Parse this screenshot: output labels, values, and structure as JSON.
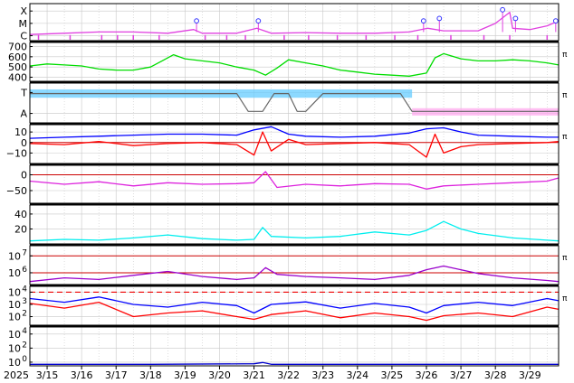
{
  "chart_data": {
    "type": "line",
    "x_start": "2025-03-14T12:00",
    "x_end": "2025-03-29T20:00",
    "date_ticks": [
      {
        "date": "2025-03-15",
        "label": "3/15"
      },
      {
        "date": "2025-03-16",
        "label": "3/16"
      },
      {
        "date": "2025-03-17",
        "label": "3/17"
      },
      {
        "date": "2025-03-18",
        "label": "3/18"
      },
      {
        "date": "2025-03-19",
        "label": "3/19"
      },
      {
        "date": "2025-03-20",
        "label": "3/20"
      },
      {
        "date": "2025-03-21",
        "label": "3/21"
      },
      {
        "date": "2025-03-22",
        "label": "3/22"
      },
      {
        "date": "2025-03-23",
        "label": "3/23"
      },
      {
        "date": "2025-03-24",
        "label": "3/24"
      },
      {
        "date": "2025-03-25",
        "label": "3/25"
      },
      {
        "date": "2025-03-26",
        "label": "3/26"
      },
      {
        "date": "2025-03-27",
        "label": "3/27"
      },
      {
        "date": "2025-03-28",
        "label": "3/28"
      },
      {
        "date": "2025-03-29",
        "label": "3/29"
      }
    ],
    "year_label": "2025",
    "unit_mark": "π",
    "panels": [
      {
        "id": "flare",
        "scale": "category",
        "ticks": [
          {
            "v": 2,
            "label": "X"
          },
          {
            "v": 1,
            "label": "M"
          },
          {
            "v": 0,
            "label": "C"
          }
        ],
        "ylim": [
          -0.4,
          2.6
        ],
        "series": [
          {
            "color": "#e040e0",
            "x": [
              "2025-03-14T12:00",
              "2025-03-15T12:00",
              "2025-03-16T12:00",
              "2025-03-17T12:00",
              "2025-03-18T12:00",
              "2025-03-19T06:00",
              "2025-03-19T12:00",
              "2025-03-20T12:00",
              "2025-03-21T02:00",
              "2025-03-21T12:00",
              "2025-03-22T12:00",
              "2025-03-23T12:00",
              "2025-03-24T12:00",
              "2025-03-25T12:00",
              "2025-03-26T01:00",
              "2025-03-26T12:00",
              "2025-03-27T12:00",
              "2025-03-28T00:00",
              "2025-03-28T10:00",
              "2025-03-28T12:00",
              "2025-03-29T00:00",
              "2025-03-29T12:00",
              "2025-03-29T20:00"
            ],
            "y": [
              0.1,
              0.2,
              0.3,
              0.3,
              0.2,
              0.5,
              0.2,
              0.2,
              0.6,
              0.2,
              0.25,
              0.2,
              0.2,
              0.3,
              0.6,
              0.4,
              0.4,
              1.0,
              1.9,
              0.6,
              0.5,
              0.8,
              1.2
            ]
          }
        ],
        "markers": [
          {
            "x": "2025-03-19T08:00",
            "y": 1.2
          },
          {
            "x": "2025-03-21T03:00",
            "y": 1.2
          },
          {
            "x": "2025-03-25T22:00",
            "y": 1.2
          },
          {
            "x": "2025-03-26T09:00",
            "y": 1.4
          },
          {
            "x": "2025-03-28T05:00",
            "y": 2.1
          },
          {
            "x": "2025-03-28T14:00",
            "y": 1.4
          },
          {
            "x": "2025-03-29T18:00",
            "y": 1.2
          }
        ],
        "drops": [
          "2025-03-14T18:00",
          "2025-03-15T16:00",
          "2025-03-16T14:00",
          "2025-03-17T01:00",
          "2025-03-17T12:00",
          "2025-03-18T06:00",
          "2025-03-19T14:00",
          "2025-03-20T05:00",
          "2025-03-20T18:00",
          "2025-03-21T21:00",
          "2025-03-22T14:00",
          "2025-03-23T10:00",
          "2025-03-24T06:00",
          "2025-03-25T02:00",
          "2025-03-25T18:00",
          "2025-03-26T17:00",
          "2025-03-27T16:00",
          "2025-03-28T10:00",
          "2025-03-29T12:00"
        ]
      },
      {
        "id": "wind",
        "scale": "linear",
        "ticks": [
          {
            "v": 700,
            "label": "700"
          },
          {
            "v": 600,
            "label": "600"
          },
          {
            "v": 500,
            "label": "500"
          },
          {
            "v": 400,
            "label": "400"
          }
        ],
        "ylim": [
          360,
          740
        ],
        "unit": "π",
        "series": [
          {
            "color": "#00dd00",
            "x": [
              "2025-03-14T12:00",
              "2025-03-15T00:00",
              "2025-03-15T12:00",
              "2025-03-16T00:00",
              "2025-03-16T12:00",
              "2025-03-17T00:00",
              "2025-03-17T12:00",
              "2025-03-18T00:00",
              "2025-03-18T08:00",
              "2025-03-18T16:00",
              "2025-03-19T00:00",
              "2025-03-19T12:00",
              "2025-03-20T00:00",
              "2025-03-20T12:00",
              "2025-03-21T00:00",
              "2025-03-21T08:00",
              "2025-03-21T16:00",
              "2025-03-22T00:00",
              "2025-03-22T12:00",
              "2025-03-23T00:00",
              "2025-03-23T12:00",
              "2025-03-24T00:00",
              "2025-03-24T12:00",
              "2025-03-25T00:00",
              "2025-03-25T12:00",
              "2025-03-26T00:00",
              "2025-03-26T06:00",
              "2025-03-26T12:00",
              "2025-03-27T00:00",
              "2025-03-27T12:00",
              "2025-03-28T00:00",
              "2025-03-28T12:00",
              "2025-03-29T00:00",
              "2025-03-29T12:00",
              "2025-03-29T20:00"
            ],
            "y": [
              510,
              530,
              520,
              510,
              480,
              470,
              470,
              500,
              560,
              620,
              580,
              560,
              540,
              500,
              470,
              420,
              490,
              570,
              540,
              510,
              470,
              450,
              430,
              420,
              410,
              440,
              590,
              630,
              580,
              560,
              560,
              570,
              560,
              540,
              520
            ]
          }
        ]
      },
      {
        "id": "imf-dir",
        "scale": "category",
        "ticks": [
          {
            "v": 1,
            "label": "T"
          },
          {
            "v": 0,
            "label": "A"
          }
        ],
        "ylim": [
          -0.45,
          1.45
        ],
        "unit": "π",
        "series": [
          {
            "color": "#66ccff",
            "band": [
              0.75,
              1.15
            ],
            "x": [
              "2025-03-14T12:00",
              "2025-03-25T14:00"
            ]
          },
          {
            "color": "#ffaaee",
            "band": [
              -0.1,
              0.25
            ],
            "x": [
              "2025-03-25T14:00",
              "2025-03-29T20:00"
            ]
          },
          {
            "color": "#666666",
            "x": [
              "2025-03-14T12:00",
              "2025-03-20T12:00",
              "2025-03-20T20:00",
              "2025-03-21T06:00",
              "2025-03-21T14:00",
              "2025-03-22T00:00",
              "2025-03-22T06:00",
              "2025-03-22T12:00",
              "2025-03-23T00:00",
              "2025-03-25T06:00",
              "2025-03-25T14:00",
              "2025-03-29T20:00"
            ],
            "y": [
              0.95,
              0.95,
              0.1,
              0.1,
              0.95,
              0.95,
              0.1,
              0.1,
              0.95,
              0.95,
              0.1,
              0.1
            ]
          }
        ]
      },
      {
        "id": "bz",
        "scale": "linear",
        "ticks": [
          {
            "v": 10,
            "label": "10"
          },
          {
            "v": 0,
            "label": "0"
          },
          {
            "v": -10,
            "label": "−10"
          }
        ],
        "ylim": [
          -20,
          17
        ],
        "unit": "π",
        "series": [
          {
            "color": "#0000ff",
            "x": [
              "2025-03-14T12:00",
              "2025-03-15T12:00",
              "2025-03-16T12:00",
              "2025-03-17T12:00",
              "2025-03-18T12:00",
              "2025-03-19T12:00",
              "2025-03-20T12:00",
              "2025-03-21T00:00",
              "2025-03-21T12:00",
              "2025-03-22T00:00",
              "2025-03-22T12:00",
              "2025-03-23T12:00",
              "2025-03-24T12:00",
              "2025-03-25T12:00",
              "2025-03-26T00:00",
              "2025-03-26T12:00",
              "2025-03-27T00:00",
              "2025-03-27T12:00",
              "2025-03-28T12:00",
              "2025-03-29T12:00",
              "2025-03-29T20:00"
            ],
            "y": [
              4,
              5,
              6,
              7,
              8,
              8,
              7,
              12,
              15,
              8,
              6,
              5,
              6,
              9,
              13,
              14,
              10,
              7,
              6,
              5,
              5
            ]
          },
          {
            "color": "#ff0000",
            "x": [
              "2025-03-14T12:00",
              "2025-03-15T12:00",
              "2025-03-16T12:00",
              "2025-03-17T12:00",
              "2025-03-18T12:00",
              "2025-03-19T12:00",
              "2025-03-20T12:00",
              "2025-03-21T00:00",
              "2025-03-21T06:00",
              "2025-03-21T12:00",
              "2025-03-22T00:00",
              "2025-03-22T12:00",
              "2025-03-23T12:00",
              "2025-03-24T12:00",
              "2025-03-25T12:00",
              "2025-03-26T00:00",
              "2025-03-26T06:00",
              "2025-03-26T12:00",
              "2025-03-27T00:00",
              "2025-03-27T12:00",
              "2025-03-28T12:00",
              "2025-03-29T12:00",
              "2025-03-29T20:00"
            ],
            "y": [
              -1,
              -2,
              1,
              -3,
              -1,
              0,
              -2,
              -12,
              10,
              -8,
              3,
              -2,
              -1,
              0,
              -2,
              -14,
              8,
              -10,
              -4,
              -2,
              -1,
              0,
              1
            ]
          }
        ]
      },
      {
        "id": "phi",
        "scale": "linear",
        "ticks": [
          {
            "v": 0,
            "label": "0"
          },
          {
            "v": -50,
            "label": "−50"
          }
        ],
        "ylim": [
          -90,
          30
        ],
        "series": [
          {
            "color": "#dd22dd",
            "x": [
              "2025-03-14T12:00",
              "2025-03-15T12:00",
              "2025-03-16T12:00",
              "2025-03-17T12:00",
              "2025-03-18T12:00",
              "2025-03-19T12:00",
              "2025-03-20T12:00",
              "2025-03-21T00:00",
              "2025-03-21T08:00",
              "2025-03-21T16:00",
              "2025-03-22T12:00",
              "2025-03-23T12:00",
              "2025-03-24T12:00",
              "2025-03-25T12:00",
              "2025-03-26T00:00",
              "2025-03-26T12:00",
              "2025-03-27T12:00",
              "2025-03-28T12:00",
              "2025-03-29T12:00",
              "2025-03-29T20:00"
            ],
            "y": [
              -20,
              -30,
              -22,
              -35,
              -25,
              -30,
              -28,
              -25,
              10,
              -40,
              -30,
              -35,
              -28,
              -30,
              -45,
              -35,
              -30,
              -25,
              -20,
              -10
            ]
          }
        ]
      },
      {
        "id": "density",
        "scale": "linear",
        "ticks": [
          {
            "v": 40,
            "label": "40"
          },
          {
            "v": 20,
            "label": "20"
          }
        ],
        "ylim": [
          0,
          52
        ],
        "series": [
          {
            "color": "#00eeee",
            "x": [
              "2025-03-14T12:00",
              "2025-03-15T12:00",
              "2025-03-16T12:00",
              "2025-03-17T12:00",
              "2025-03-18T12:00",
              "2025-03-19T12:00",
              "2025-03-20T12:00",
              "2025-03-21T00:00",
              "2025-03-21T06:00",
              "2025-03-21T12:00",
              "2025-03-22T12:00",
              "2025-03-23T12:00",
              "2025-03-24T12:00",
              "2025-03-25T12:00",
              "2025-03-26T00:00",
              "2025-03-26T12:00",
              "2025-03-27T00:00",
              "2025-03-27T12:00",
              "2025-03-28T12:00",
              "2025-03-29T12:00",
              "2025-03-29T20:00"
            ],
            "y": [
              4,
              6,
              5,
              8,
              12,
              7,
              5,
              6,
              22,
              10,
              8,
              10,
              16,
              12,
              18,
              30,
              20,
              14,
              8,
              5,
              4
            ]
          }
        ]
      },
      {
        "id": "temp",
        "scale": "log",
        "ticks": [
          {
            "v": 10000000,
            "label": "10",
            "exp": "7"
          },
          {
            "v": 1000000,
            "label": "10",
            "exp": "6"
          }
        ],
        "ylim": [
          200000,
          40000000
        ],
        "unit": "π",
        "series": [
          {
            "color": "#9900cc",
            "x": [
              "2025-03-14T12:00",
              "2025-03-15T12:00",
              "2025-03-16T12:00",
              "2025-03-17T12:00",
              "2025-03-18T12:00",
              "2025-03-19T12:00",
              "2025-03-20T12:00",
              "2025-03-21T00:00",
              "2025-03-21T08:00",
              "2025-03-21T16:00",
              "2025-03-22T12:00",
              "2025-03-23T12:00",
              "2025-03-24T12:00",
              "2025-03-25T12:00",
              "2025-03-26T00:00",
              "2025-03-26T12:00",
              "2025-03-27T12:00",
              "2025-03-28T12:00",
              "2025-03-29T12:00",
              "2025-03-29T20:00"
            ],
            "y": [
              300000,
              500000,
              400000,
              700000,
              1200000,
              600000,
              400000,
              500000,
              2000000,
              800000,
              600000,
              500000,
              400000,
              700000,
              1500000,
              2500000,
              900000,
              500000,
              350000,
              300000
            ]
          }
        ]
      },
      {
        "id": "flux",
        "scale": "log",
        "ticks": [
          {
            "v": 10000,
            "label": "10",
            "exp": "4"
          },
          {
            "v": 1000,
            "label": "10",
            "exp": "3"
          },
          {
            "v": 100,
            "label": "10",
            "exp": "2"
          }
        ],
        "ylim": [
          20,
          30000
        ],
        "unit": "π",
        "threshold": 10000,
        "series": [
          {
            "color": "#0000ff",
            "x": [
              "2025-03-14T12:00",
              "2025-03-15T12:00",
              "2025-03-16T12:00",
              "2025-03-17T12:00",
              "2025-03-18T12:00",
              "2025-03-19T12:00",
              "2025-03-20T12:00",
              "2025-03-21T00:00",
              "2025-03-21T12:00",
              "2025-03-22T12:00",
              "2025-03-23T12:00",
              "2025-03-24T12:00",
              "2025-03-25T12:00",
              "2025-03-26T00:00",
              "2025-03-26T12:00",
              "2025-03-27T12:00",
              "2025-03-28T12:00",
              "2025-03-29T12:00",
              "2025-03-29T20:00"
            ],
            "y": [
              3000,
              1500,
              4000,
              1000,
              600,
              1500,
              800,
              200,
              1000,
              1600,
              500,
              1200,
              600,
              200,
              800,
              1500,
              800,
              3000,
              2000
            ]
          },
          {
            "color": "#ff0000",
            "x": [
              "2025-03-14T12:00",
              "2025-03-15T12:00",
              "2025-03-16T12:00",
              "2025-03-17T12:00",
              "2025-03-18T12:00",
              "2025-03-19T12:00",
              "2025-03-20T12:00",
              "2025-03-21T00:00",
              "2025-03-21T12:00",
              "2025-03-22T12:00",
              "2025-03-23T12:00",
              "2025-03-24T12:00",
              "2025-03-25T12:00",
              "2025-03-26T00:00",
              "2025-03-26T12:00",
              "2025-03-27T12:00",
              "2025-03-28T12:00",
              "2025-03-29T12:00",
              "2025-03-29T20:00"
            ],
            "y": [
              1200,
              500,
              1500,
              100,
              200,
              300,
              100,
              60,
              150,
              300,
              80,
              200,
              100,
              50,
              120,
              200,
              100,
              600,
              400
            ]
          }
        ]
      },
      {
        "id": "proton",
        "scale": "log",
        "ticks": [
          {
            "v": 10000,
            "label": "10",
            "exp": "4"
          },
          {
            "v": 100,
            "label": "10",
            "exp": "2"
          },
          {
            "v": 1,
            "label": "10",
            "exp": "0"
          }
        ],
        "ylim": [
          0.3,
          100000
        ],
        "series": [
          {
            "color": "#0000cc",
            "x": [
              "2025-03-14T12:00",
              "2025-03-18T00:00",
              "2025-03-21T00:00",
              "2025-03-21T06:00",
              "2025-03-21T12:00",
              "2025-03-25T00:00",
              "2025-03-29T20:00"
            ],
            "y": [
              0.5,
              0.5,
              0.6,
              0.9,
              0.5,
              0.5,
              0.5
            ]
          }
        ]
      }
    ]
  }
}
